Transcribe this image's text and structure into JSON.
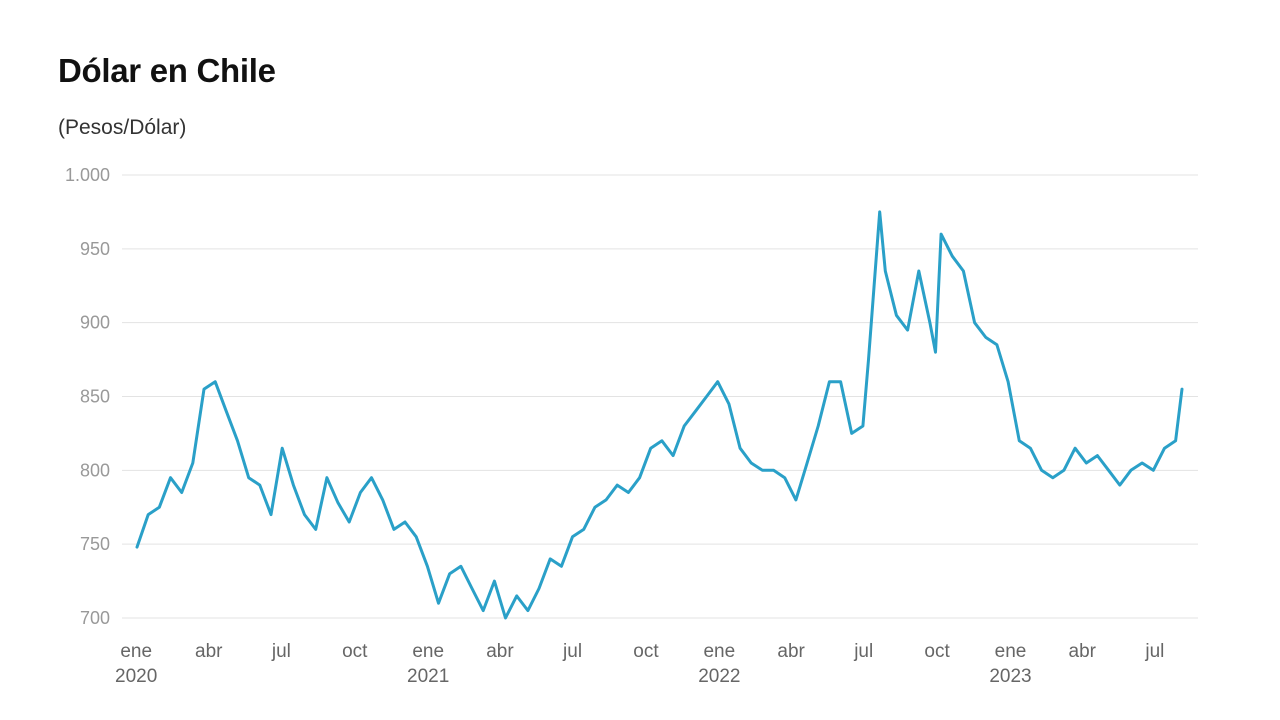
{
  "chart_data": {
    "type": "line",
    "title": "Dólar en Chile",
    "subtitle": "(Pesos/Dólar)",
    "ylim": [
      700,
      1000
    ],
    "yticks": [
      700,
      750,
      800,
      850,
      900,
      950,
      1000
    ],
    "ytick_labels": [
      "700",
      "750",
      "800",
      "850",
      "900",
      "950",
      "1.000"
    ],
    "xlim": [
      "2020-01-02",
      "2023-08-04"
    ],
    "xticks": [
      {
        "date": "2020-01-01",
        "label": "ene",
        "year": "2020"
      },
      {
        "date": "2020-04-01",
        "label": "abr",
        "year": ""
      },
      {
        "date": "2020-07-01",
        "label": "jul",
        "year": ""
      },
      {
        "date": "2020-10-01",
        "label": "oct",
        "year": ""
      },
      {
        "date": "2021-01-01",
        "label": "ene",
        "year": "2021"
      },
      {
        "date": "2021-04-01",
        "label": "abr",
        "year": ""
      },
      {
        "date": "2021-07-01",
        "label": "jul",
        "year": ""
      },
      {
        "date": "2021-10-01",
        "label": "oct",
        "year": ""
      },
      {
        "date": "2022-01-01",
        "label": "ene",
        "year": "2022"
      },
      {
        "date": "2022-04-01",
        "label": "abr",
        "year": ""
      },
      {
        "date": "2022-07-01",
        "label": "jul",
        "year": ""
      },
      {
        "date": "2022-10-01",
        "label": "oct",
        "year": ""
      },
      {
        "date": "2023-01-01",
        "label": "ene",
        "year": "2023"
      },
      {
        "date": "2023-04-01",
        "label": "abr",
        "year": ""
      },
      {
        "date": "2023-07-01",
        "label": "jul",
        "year": ""
      }
    ],
    "grid": true,
    "legend": "none",
    "series": [
      {
        "color": "#2aa0c8",
        "x": [
          "2020-01-02",
          "2020-01-16",
          "2020-01-30",
          "2020-02-13",
          "2020-02-27",
          "2020-03-12",
          "2020-03-19",
          "2020-03-26",
          "2020-04-09",
          "2020-04-23",
          "2020-05-07",
          "2020-05-21",
          "2020-06-04",
          "2020-06-18",
          "2020-07-02",
          "2020-07-16",
          "2020-07-30",
          "2020-08-13",
          "2020-08-27",
          "2020-09-10",
          "2020-09-24",
          "2020-10-08",
          "2020-10-22",
          "2020-11-05",
          "2020-11-19",
          "2020-12-03",
          "2020-12-17",
          "2020-12-31",
          "2021-01-14",
          "2021-01-28",
          "2021-02-11",
          "2021-02-25",
          "2021-03-11",
          "2021-03-25",
          "2021-04-08",
          "2021-04-22",
          "2021-05-06",
          "2021-05-20",
          "2021-06-03",
          "2021-06-17",
          "2021-07-01",
          "2021-07-15",
          "2021-07-29",
          "2021-08-12",
          "2021-08-26",
          "2021-09-09",
          "2021-09-23",
          "2021-10-07",
          "2021-10-21",
          "2021-11-04",
          "2021-11-18",
          "2021-12-02",
          "2021-12-16",
          "2021-12-30",
          "2022-01-13",
          "2022-01-27",
          "2022-02-10",
          "2022-02-24",
          "2022-03-10",
          "2022-03-24",
          "2022-04-07",
          "2022-04-21",
          "2022-05-05",
          "2022-05-19",
          "2022-06-02",
          "2022-06-16",
          "2022-06-30",
          "2022-07-07",
          "2022-07-14",
          "2022-07-21",
          "2022-07-28",
          "2022-08-11",
          "2022-08-25",
          "2022-09-08",
          "2022-09-22",
          "2022-09-29",
          "2022-10-06",
          "2022-10-20",
          "2022-11-03",
          "2022-11-17",
          "2022-12-01",
          "2022-12-15",
          "2022-12-29",
          "2023-01-12",
          "2023-01-26",
          "2023-02-09",
          "2023-02-23",
          "2023-03-09",
          "2023-03-23",
          "2023-04-06",
          "2023-04-20",
          "2023-05-04",
          "2023-05-18",
          "2023-06-01",
          "2023-06-15",
          "2023-06-29",
          "2023-07-13",
          "2023-07-27",
          "2023-08-04"
        ],
        "y": [
          748,
          770,
          775,
          795,
          785,
          805,
          830,
          855,
          860,
          840,
          820,
          795,
          790,
          770,
          815,
          790,
          770,
          760,
          795,
          778,
          765,
          785,
          795,
          780,
          760,
          765,
          755,
          735,
          710,
          730,
          735,
          720,
          705,
          725,
          700,
          715,
          705,
          720,
          740,
          735,
          755,
          760,
          775,
          780,
          790,
          785,
          795,
          815,
          820,
          810,
          830,
          840,
          850,
          860,
          845,
          815,
          805,
          800,
          800,
          795,
          780,
          805,
          830,
          860,
          860,
          825,
          830,
          875,
          925,
          975,
          935,
          905,
          895,
          935,
          900,
          880,
          960,
          945,
          935,
          900,
          890,
          885,
          860,
          820,
          815,
          800,
          795,
          800,
          815,
          805,
          810,
          800,
          790,
          800,
          805,
          800,
          815,
          820,
          855
        ]
      }
    ]
  }
}
